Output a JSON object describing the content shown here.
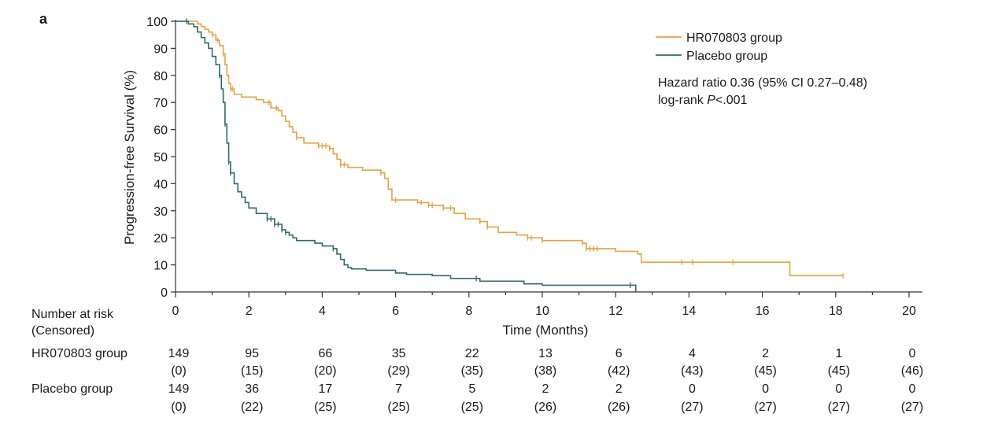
{
  "panel_label": "a",
  "colors": {
    "hr_series": "#E8A33B",
    "placebo_series": "#2E6B6B",
    "axis": "#333333"
  },
  "annotation": {
    "hr_line": "Hazard ratio 0.36 (95% CI 0.27–0.48)",
    "logrank_prefix": "log-rank ",
    "logrank_p": "P",
    "logrank_value": "<.001"
  },
  "risk_table": {
    "title_line1": "Number at risk",
    "title_line2": "(Censored)",
    "times": [
      0,
      2,
      4,
      6,
      8,
      10,
      12,
      14,
      16,
      18,
      20
    ],
    "groups": [
      {
        "label": "HR070803 group",
        "at_risk": [
          "149",
          "95",
          "66",
          "35",
          "22",
          "13",
          "6",
          "4",
          "2",
          "1",
          "0"
        ],
        "censored": [
          "(0)",
          "(15)",
          "(20)",
          "(29)",
          "(35)",
          "(38)",
          "(42)",
          "(43)",
          "(45)",
          "(45)",
          "(46)"
        ]
      },
      {
        "label": "Placebo group",
        "at_risk": [
          "149",
          "36",
          "17",
          "7",
          "5",
          "2",
          "2",
          "0",
          "0",
          "0",
          "0"
        ],
        "censored": [
          "(0)",
          "(22)",
          "(25)",
          "(25)",
          "(25)",
          "(26)",
          "(26)",
          "(27)",
          "(27)",
          "(27)",
          "(27)"
        ]
      }
    ]
  },
  "chart_data": {
    "type": "line",
    "step": true,
    "xlabel": "Time (Months)",
    "ylabel": "Progression-free Survival (%)",
    "xlim": [
      0,
      20
    ],
    "ylim": [
      0,
      100
    ],
    "xticks": [
      0,
      2,
      4,
      6,
      8,
      10,
      12,
      14,
      16,
      18,
      20
    ],
    "yticks": [
      0,
      10,
      20,
      30,
      40,
      50,
      60,
      70,
      80,
      90,
      100
    ],
    "grid": false,
    "legend_position": "top-right",
    "series": [
      {
        "name": "HR070803 group",
        "color": "#E8A33B",
        "points": [
          [
            0,
            100
          ],
          [
            0.6,
            99
          ],
          [
            0.7,
            98
          ],
          [
            0.8,
            97
          ],
          [
            0.9,
            96
          ],
          [
            1.0,
            95
          ],
          [
            1.1,
            93
          ],
          [
            1.2,
            91
          ],
          [
            1.3,
            88
          ],
          [
            1.35,
            84
          ],
          [
            1.4,
            80
          ],
          [
            1.45,
            77
          ],
          [
            1.5,
            75
          ],
          [
            1.6,
            73
          ],
          [
            1.8,
            72
          ],
          [
            2.2,
            71
          ],
          [
            2.4,
            70
          ],
          [
            2.6,
            68
          ],
          [
            2.8,
            67
          ],
          [
            2.9,
            65
          ],
          [
            3.0,
            63
          ],
          [
            3.1,
            61
          ],
          [
            3.2,
            59
          ],
          [
            3.3,
            57
          ],
          [
            3.5,
            55
          ],
          [
            3.9,
            54
          ],
          [
            4.2,
            53
          ],
          [
            4.3,
            51
          ],
          [
            4.4,
            49
          ],
          [
            4.5,
            47
          ],
          [
            4.7,
            46
          ],
          [
            5.1,
            45
          ],
          [
            5.6,
            44
          ],
          [
            5.7,
            42
          ],
          [
            5.8,
            38
          ],
          [
            5.9,
            34
          ],
          [
            6.6,
            33
          ],
          [
            6.9,
            32
          ],
          [
            7.3,
            31
          ],
          [
            7.6,
            29
          ],
          [
            7.9,
            27
          ],
          [
            8.3,
            26
          ],
          [
            8.5,
            24
          ],
          [
            8.8,
            22
          ],
          [
            9.3,
            21
          ],
          [
            9.6,
            20
          ],
          [
            10.0,
            19
          ],
          [
            11.1,
            18
          ],
          [
            11.2,
            16
          ],
          [
            11.7,
            16
          ],
          [
            12.0,
            15
          ],
          [
            12.6,
            14
          ],
          [
            12.7,
            11
          ],
          [
            16.7,
            11
          ],
          [
            16.75,
            6
          ],
          [
            18.2,
            6
          ]
        ],
        "censor_times": [
          1.0,
          1.15,
          1.3,
          1.5,
          1.55,
          2.55,
          2.75,
          3.3,
          3.9,
          4.0,
          4.1,
          4.2,
          4.5,
          4.6,
          5.6,
          6.0,
          6.7,
          6.9,
          7.0,
          7.3,
          7.5,
          8.3,
          8.5,
          9.6,
          9.7,
          10.0,
          11.1,
          11.2,
          11.3,
          11.4,
          11.5,
          13.8,
          14.1,
          15.2,
          18.2
        ],
        "final_censor_point": [
          18.2,
          6
        ]
      },
      {
        "name": "Placebo group",
        "color": "#2E6B6B",
        "points": [
          [
            0,
            100
          ],
          [
            0.35,
            99
          ],
          [
            0.5,
            98
          ],
          [
            0.6,
            96
          ],
          [
            0.7,
            94
          ],
          [
            0.8,
            92
          ],
          [
            0.9,
            90
          ],
          [
            1.0,
            87
          ],
          [
            1.1,
            84
          ],
          [
            1.2,
            80
          ],
          [
            1.25,
            75
          ],
          [
            1.3,
            70
          ],
          [
            1.35,
            62
          ],
          [
            1.4,
            55
          ],
          [
            1.45,
            48
          ],
          [
            1.5,
            44
          ],
          [
            1.6,
            40
          ],
          [
            1.7,
            37
          ],
          [
            1.8,
            35
          ],
          [
            1.9,
            33
          ],
          [
            2.0,
            31
          ],
          [
            2.2,
            29
          ],
          [
            2.5,
            27
          ],
          [
            2.7,
            25
          ],
          [
            2.9,
            23
          ],
          [
            3.0,
            22
          ],
          [
            3.1,
            21
          ],
          [
            3.2,
            20
          ],
          [
            3.3,
            19
          ],
          [
            3.5,
            19
          ],
          [
            3.8,
            18
          ],
          [
            4.0,
            17
          ],
          [
            4.3,
            16
          ],
          [
            4.4,
            14
          ],
          [
            4.5,
            12
          ],
          [
            4.6,
            10
          ],
          [
            4.7,
            9
          ],
          [
            4.8,
            8.5
          ],
          [
            5.2,
            8
          ],
          [
            6.0,
            7
          ],
          [
            6.3,
            6.5
          ],
          [
            7.0,
            6
          ],
          [
            7.5,
            5
          ],
          [
            8.3,
            4
          ],
          [
            9.5,
            3
          ],
          [
            10.0,
            2.5
          ],
          [
            12.5,
            2.5
          ],
          [
            12.55,
            0
          ]
        ],
        "censor_times": [
          0.3,
          1.2,
          1.35,
          1.45,
          1.5,
          2.5,
          2.6,
          2.7,
          2.8,
          2.9,
          3.0,
          4.3,
          8.2,
          12.4
        ],
        "final_censor_point": [
          12.4,
          2.5
        ]
      }
    ]
  }
}
